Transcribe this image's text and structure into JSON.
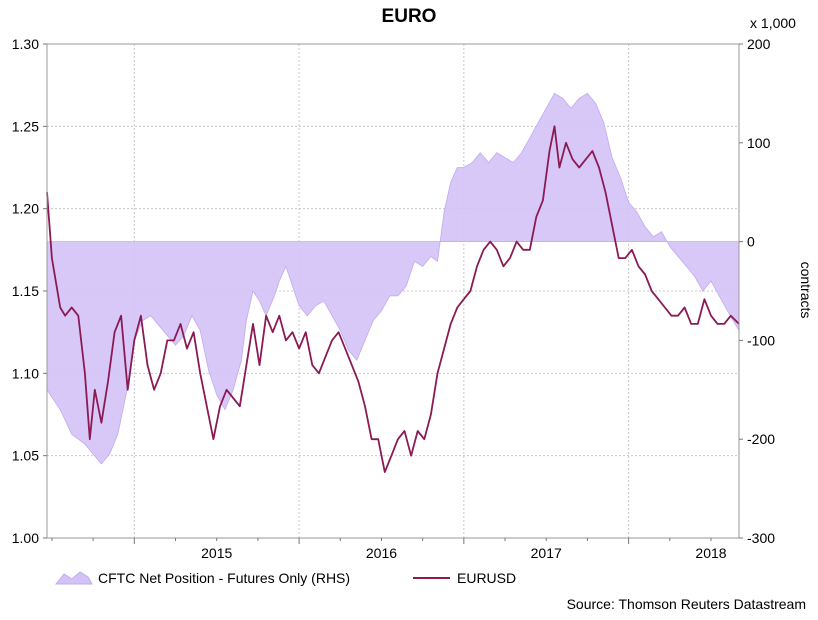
{
  "chart_data": {
    "type": "line",
    "title": "EURO",
    "left_axis": {
      "ylim": [
        1.0,
        1.3
      ],
      "ticks": [
        "1.30",
        "1.25",
        "1.20",
        "1.15",
        "1.10",
        "1.05",
        "1.00"
      ]
    },
    "right_axis": {
      "label": "contracts",
      "multiplier_label": "x 1,000",
      "ylim": [
        -300,
        200
      ],
      "ticks": [
        "200",
        "100",
        "0",
        "-100",
        "-200",
        "-300"
      ]
    },
    "x_axis": {
      "range": [
        2014.47,
        2018.67
      ],
      "tick_labels": [
        {
          "label": "2015",
          "at": 2015.0
        },
        {
          "label": "2016",
          "at": 2016.0
        },
        {
          "label": "2017",
          "at": 2017.0
        },
        {
          "label": "2018",
          "at": 2018.0
        }
      ]
    },
    "grid": true,
    "legend_position": "bottom-left",
    "source": "Source: Thomson Reuters Datastream",
    "series": [
      {
        "name": "CFTC Net Position - Futures Only (RHS)",
        "kind": "area",
        "axis": "right",
        "color": "#d4c2f7",
        "points": [
          [
            2014.47,
            -150
          ],
          [
            2014.55,
            -170
          ],
          [
            2014.62,
            -195
          ],
          [
            2014.7,
            -205
          ],
          [
            2014.75,
            -215
          ],
          [
            2014.8,
            -225
          ],
          [
            2014.85,
            -215
          ],
          [
            2014.9,
            -195
          ],
          [
            2014.95,
            -155
          ],
          [
            2015.0,
            -100
          ],
          [
            2015.05,
            -80
          ],
          [
            2015.1,
            -75
          ],
          [
            2015.15,
            -85
          ],
          [
            2015.2,
            -95
          ],
          [
            2015.25,
            -105
          ],
          [
            2015.3,
            -95
          ],
          [
            2015.35,
            -75
          ],
          [
            2015.4,
            -90
          ],
          [
            2015.45,
            -130
          ],
          [
            2015.5,
            -155
          ],
          [
            2015.55,
            -170
          ],
          [
            2015.6,
            -150
          ],
          [
            2015.65,
            -120
          ],
          [
            2015.68,
            -80
          ],
          [
            2015.72,
            -50
          ],
          [
            2015.76,
            -60
          ],
          [
            2015.8,
            -75
          ],
          [
            2015.85,
            -55
          ],
          [
            2015.88,
            -40
          ],
          [
            2015.92,
            -25
          ],
          [
            2015.96,
            -45
          ],
          [
            2016.0,
            -65
          ],
          [
            2016.05,
            -75
          ],
          [
            2016.1,
            -65
          ],
          [
            2016.15,
            -60
          ],
          [
            2016.2,
            -75
          ],
          [
            2016.25,
            -90
          ],
          [
            2016.3,
            -110
          ],
          [
            2016.35,
            -120
          ],
          [
            2016.4,
            -100
          ],
          [
            2016.45,
            -80
          ],
          [
            2016.5,
            -70
          ],
          [
            2016.55,
            -55
          ],
          [
            2016.6,
            -55
          ],
          [
            2016.65,
            -45
          ],
          [
            2016.7,
            -20
          ],
          [
            2016.75,
            -25
          ],
          [
            2016.8,
            -15
          ],
          [
            2016.84,
            -20
          ],
          [
            2016.88,
            30
          ],
          [
            2016.92,
            60
          ],
          [
            2016.96,
            75
          ],
          [
            2017.0,
            75
          ],
          [
            2017.05,
            80
          ],
          [
            2017.1,
            90
          ],
          [
            2017.15,
            80
          ],
          [
            2017.2,
            90
          ],
          [
            2017.25,
            85
          ],
          [
            2017.3,
            80
          ],
          [
            2017.35,
            90
          ],
          [
            2017.4,
            105
          ],
          [
            2017.45,
            120
          ],
          [
            2017.5,
            135
          ],
          [
            2017.55,
            150
          ],
          [
            2017.6,
            145
          ],
          [
            2017.65,
            135
          ],
          [
            2017.7,
            145
          ],
          [
            2017.75,
            150
          ],
          [
            2017.8,
            140
          ],
          [
            2017.85,
            120
          ],
          [
            2017.9,
            85
          ],
          [
            2017.95,
            65
          ],
          [
            2018.0,
            40
          ],
          [
            2018.05,
            30
          ],
          [
            2018.1,
            15
          ],
          [
            2018.15,
            5
          ],
          [
            2018.2,
            10
          ],
          [
            2018.25,
            -5
          ],
          [
            2018.3,
            -15
          ],
          [
            2018.35,
            -25
          ],
          [
            2018.4,
            -35
          ],
          [
            2018.45,
            -50
          ],
          [
            2018.5,
            -40
          ],
          [
            2018.55,
            -55
          ],
          [
            2018.6,
            -70
          ],
          [
            2018.67,
            -90
          ]
        ]
      },
      {
        "name": "EURUSD",
        "kind": "line",
        "axis": "left",
        "color": "#8b1a54",
        "points": [
          [
            2014.47,
            1.21
          ],
          [
            2014.5,
            1.17
          ],
          [
            2014.55,
            1.14
          ],
          [
            2014.58,
            1.135
          ],
          [
            2014.62,
            1.14
          ],
          [
            2014.66,
            1.135
          ],
          [
            2014.7,
            1.1
          ],
          [
            2014.73,
            1.06
          ],
          [
            2014.76,
            1.09
          ],
          [
            2014.8,
            1.07
          ],
          [
            2014.84,
            1.095
          ],
          [
            2014.88,
            1.125
          ],
          [
            2014.92,
            1.135
          ],
          [
            2014.96,
            1.09
          ],
          [
            2015.0,
            1.12
          ],
          [
            2015.04,
            1.135
          ],
          [
            2015.08,
            1.105
          ],
          [
            2015.12,
            1.09
          ],
          [
            2015.16,
            1.1
          ],
          [
            2015.2,
            1.12
          ],
          [
            2015.24,
            1.12
          ],
          [
            2015.28,
            1.13
          ],
          [
            2015.32,
            1.115
          ],
          [
            2015.36,
            1.125
          ],
          [
            2015.4,
            1.1
          ],
          [
            2015.44,
            1.08
          ],
          [
            2015.48,
            1.06
          ],
          [
            2015.52,
            1.08
          ],
          [
            2015.56,
            1.09
          ],
          [
            2015.6,
            1.085
          ],
          [
            2015.64,
            1.08
          ],
          [
            2015.68,
            1.105
          ],
          [
            2015.72,
            1.13
          ],
          [
            2015.76,
            1.105
          ],
          [
            2015.8,
            1.135
          ],
          [
            2015.84,
            1.125
          ],
          [
            2015.88,
            1.135
          ],
          [
            2015.92,
            1.12
          ],
          [
            2015.96,
            1.125
          ],
          [
            2016.0,
            1.115
          ],
          [
            2016.04,
            1.125
          ],
          [
            2016.08,
            1.105
          ],
          [
            2016.12,
            1.1
          ],
          [
            2016.16,
            1.11
          ],
          [
            2016.2,
            1.12
          ],
          [
            2016.24,
            1.125
          ],
          [
            2016.28,
            1.115
          ],
          [
            2016.32,
            1.105
          ],
          [
            2016.36,
            1.095
          ],
          [
            2016.4,
            1.08
          ],
          [
            2016.44,
            1.06
          ],
          [
            2016.48,
            1.06
          ],
          [
            2016.52,
            1.04
          ],
          [
            2016.56,
            1.05
          ],
          [
            2016.6,
            1.06
          ],
          [
            2016.64,
            1.065
          ],
          [
            2016.68,
            1.05
          ],
          [
            2016.72,
            1.065
          ],
          [
            2016.76,
            1.06
          ],
          [
            2016.8,
            1.075
          ],
          [
            2016.84,
            1.1
          ],
          [
            2016.88,
            1.115
          ],
          [
            2016.92,
            1.13
          ],
          [
            2016.96,
            1.14
          ],
          [
            2017.0,
            1.145
          ],
          [
            2017.04,
            1.15
          ],
          [
            2017.08,
            1.165
          ],
          [
            2017.12,
            1.175
          ],
          [
            2017.16,
            1.18
          ],
          [
            2017.2,
            1.175
          ],
          [
            2017.24,
            1.165
          ],
          [
            2017.28,
            1.17
          ],
          [
            2017.32,
            1.18
          ],
          [
            2017.36,
            1.175
          ],
          [
            2017.4,
            1.175
          ],
          [
            2017.44,
            1.195
          ],
          [
            2017.48,
            1.205
          ],
          [
            2017.52,
            1.235
          ],
          [
            2017.55,
            1.25
          ],
          [
            2017.58,
            1.225
          ],
          [
            2017.62,
            1.24
          ],
          [
            2017.66,
            1.23
          ],
          [
            2017.7,
            1.225
          ],
          [
            2017.74,
            1.23
          ],
          [
            2017.78,
            1.235
          ],
          [
            2017.82,
            1.225
          ],
          [
            2017.86,
            1.21
          ],
          [
            2017.9,
            1.19
          ],
          [
            2017.94,
            1.17
          ],
          [
            2017.98,
            1.17
          ],
          [
            2018.02,
            1.175
          ],
          [
            2018.06,
            1.165
          ],
          [
            2018.1,
            1.16
          ],
          [
            2018.14,
            1.15
          ],
          [
            2018.18,
            1.145
          ],
          [
            2018.22,
            1.14
          ],
          [
            2018.26,
            1.135
          ],
          [
            2018.3,
            1.135
          ],
          [
            2018.34,
            1.14
          ],
          [
            2018.38,
            1.13
          ],
          [
            2018.42,
            1.13
          ],
          [
            2018.46,
            1.145
          ],
          [
            2018.5,
            1.135
          ],
          [
            2018.54,
            1.13
          ],
          [
            2018.58,
            1.13
          ],
          [
            2018.62,
            1.135
          ],
          [
            2018.67,
            1.13
          ]
        ]
      }
    ]
  }
}
